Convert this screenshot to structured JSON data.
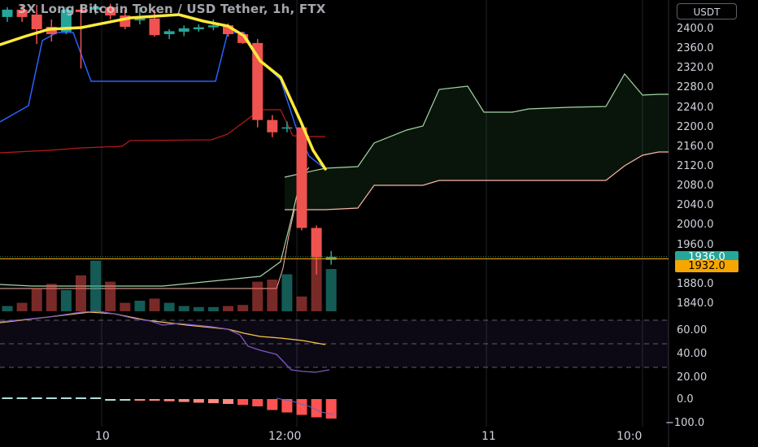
{
  "header": {
    "title": "3X Long Bitcoin Token / USD Tether, 1h, FTX",
    "currency": "USDT"
  },
  "price_axis": {
    "labels": [
      "2400.0",
      "2360.0",
      "2320.0",
      "2280.0",
      "2240.0",
      "2200.0",
      "2160.0",
      "2120.0",
      "2080.0",
      "2040.0",
      "2000.0",
      "1960.0",
      "1880.0",
      "1840.0"
    ],
    "tag_last": "1936.0",
    "tag_orange": "1932.0"
  },
  "rsi_axis": {
    "labels": [
      "60.00",
      "40.00",
      "20.00"
    ]
  },
  "macd_axis": {
    "labels": [
      "0.0",
      "−100.0"
    ]
  },
  "time_axis": {
    "labels": [
      "10",
      "12:00",
      "11",
      "10:0"
    ]
  },
  "colors": {
    "up": "#26a69a",
    "down": "#ef5350",
    "ema": "#ffeb3b",
    "tenkan": "#2962ff",
    "kijun": "#b71c1c",
    "span_a": "#a5d6a7",
    "span_b": "#f8b6a8",
    "rsi": "#7e57c2",
    "rsi_ma": "#f9c74f",
    "last_price": "#26a69a",
    "mark_price": "#f7a600"
  },
  "chart_data": {
    "type": "candlestick",
    "symbol": "3X Long Bitcoin Token / USD Tether",
    "interval": "1h",
    "exchange": "FTX",
    "ylim": [
      1820,
      2440
    ],
    "candles": [
      {
        "o": 2425,
        "h": 2445,
        "l": 2415,
        "c": 2440
      },
      {
        "o": 2440,
        "h": 2450,
        "l": 2415,
        "c": 2425
      },
      {
        "o": 2430,
        "h": 2450,
        "l": 2370,
        "c": 2400
      },
      {
        "o": 2405,
        "h": 2420,
        "l": 2375,
        "c": 2390
      },
      {
        "o": 2395,
        "h": 2445,
        "l": 2390,
        "c": 2440
      },
      {
        "o": 2440,
        "h": 2450,
        "l": 2320,
        "c": 2435
      },
      {
        "o": 2440,
        "h": 2452,
        "l": 2430,
        "c": 2445
      },
      {
        "o": 2445,
        "h": 2452,
        "l": 2420,
        "c": 2428
      },
      {
        "o": 2428,
        "h": 2440,
        "l": 2400,
        "c": 2405
      },
      {
        "o": 2418,
        "h": 2445,
        "l": 2410,
        "c": 2422
      },
      {
        "o": 2422,
        "h": 2440,
        "l": 2385,
        "c": 2388
      },
      {
        "o": 2390,
        "h": 2400,
        "l": 2380,
        "c": 2396
      },
      {
        "o": 2395,
        "h": 2408,
        "l": 2386,
        "c": 2402
      },
      {
        "o": 2400,
        "h": 2410,
        "l": 2395,
        "c": 2404
      },
      {
        "o": 2404,
        "h": 2420,
        "l": 2398,
        "c": 2408
      },
      {
        "o": 2408,
        "h": 2412,
        "l": 2385,
        "c": 2390
      },
      {
        "o": 2390,
        "h": 2395,
        "l": 2370,
        "c": 2372
      },
      {
        "o": 2372,
        "h": 2380,
        "l": 2200,
        "c": 2215
      },
      {
        "o": 2215,
        "h": 2225,
        "l": 2180,
        "c": 2190
      },
      {
        "o": 2200,
        "h": 2212,
        "l": 2190,
        "c": 2200
      },
      {
        "o": 2200,
        "h": 2205,
        "l": 1990,
        "c": 1995
      },
      {
        "o": 1995,
        "h": 2000,
        "l": 1900,
        "c": 1935
      },
      {
        "o": 1930,
        "h": 1948,
        "l": 1920,
        "c": 1936
      }
    ],
    "volume": [
      5,
      8,
      22,
      26,
      20,
      34,
      48,
      28,
      8,
      10,
      12,
      8,
      5,
      4,
      4,
      5,
      6,
      28,
      30,
      35,
      14,
      68,
      40
    ],
    "last_price": 1936.0,
    "mark_price": 1932.0,
    "rsi": {
      "ylim": [
        0,
        80
      ],
      "bands": [
        30,
        50,
        70
      ],
      "values": [
        78,
        78,
        77,
        75,
        73,
        72,
        70,
        69,
        68,
        68,
        66,
        64,
        60,
        58,
        55,
        50,
        45,
        35,
        32,
        25,
        22,
        21,
        21
      ]
    },
    "macd_hist": {
      "ylim": [
        -120,
        20
      ],
      "values": [
        0,
        0,
        0,
        0,
        0,
        0,
        0,
        -1,
        -3,
        -5,
        -7,
        -9,
        -12,
        -15,
        -17,
        -20,
        -24,
        -30,
        -45,
        -55,
        -65,
        -75,
        -80
      ]
    },
    "x_labels": [
      "10",
      "12:00",
      "11",
      "10:0"
    ]
  }
}
